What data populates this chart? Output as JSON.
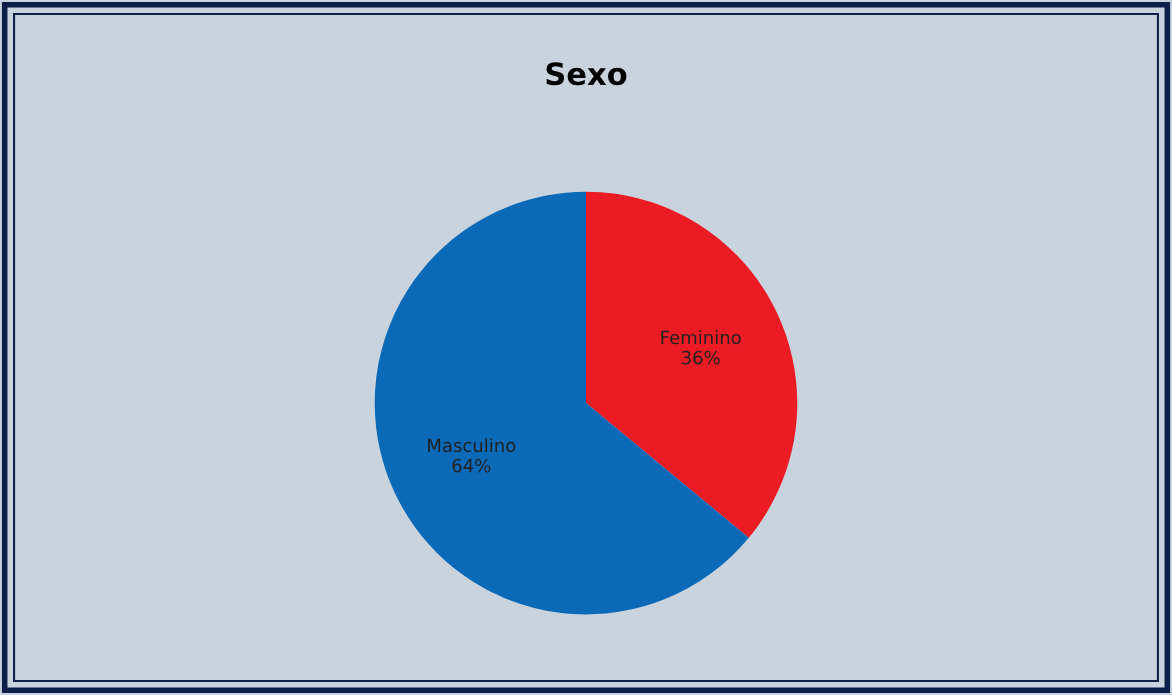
{
  "chart_data": {
    "type": "pie",
    "title": "Sexo",
    "categories": [
      "Feminino",
      "Masculino"
    ],
    "values": [
      36,
      64
    ],
    "colors": [
      "#ed1c24",
      "#0a6ab8"
    ],
    "value_labels": [
      "36%",
      "64%"
    ]
  }
}
